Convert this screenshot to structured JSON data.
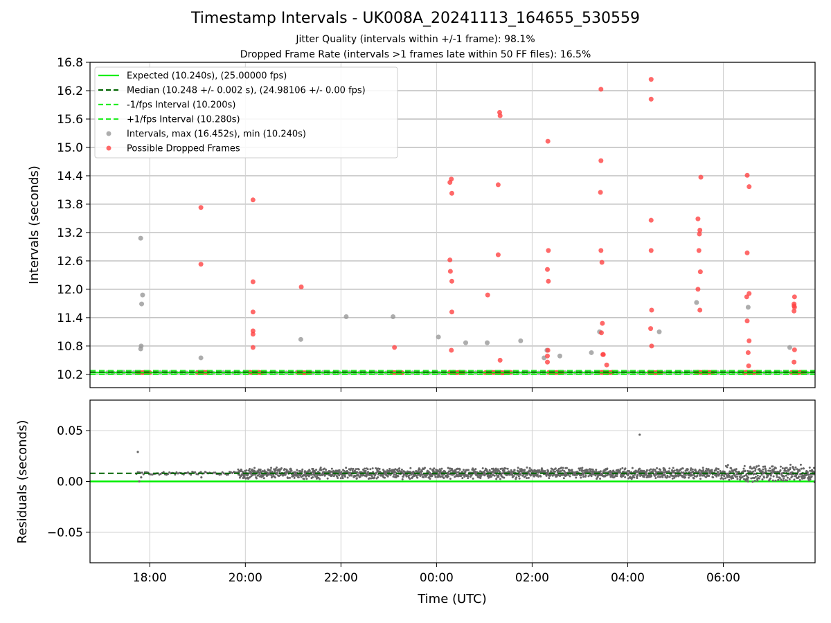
{
  "title": "Timestamp Intervals - UK008A_20241113_164655_530559",
  "subtitle_jitter": "Jitter Quality (intervals within +/-1 frame): 98.1%",
  "subtitle_dropped": "Dropped Frame Rate (intervals >1 frames late within 50 FF files): 16.5%",
  "colors": {
    "expected": "#00ee00",
    "median": "#006400",
    "fps_bounds": "#22ee22",
    "intervals": "#999999",
    "dropped": "#ff4444",
    "residuals": "#666666"
  },
  "chart_data": [
    {
      "type": "scatter",
      "name": "intervals",
      "ylabel": "Intervals (seconds)",
      "xlabel": "",
      "x_unit": "hours since 16:00 UTC",
      "xlim": [
        0.75,
        15.92
      ],
      "ylim": [
        9.92,
        16.8
      ],
      "y_ticks": [
        10.2,
        10.8,
        11.4,
        12.0,
        12.6,
        13.2,
        13.8,
        14.4,
        15.0,
        15.6,
        16.2,
        16.8
      ],
      "y_tick_labels": [
        "10.2",
        "10.8",
        "11.4",
        "12.0",
        "12.6",
        "13.2",
        "13.8",
        "14.4",
        "15.0",
        "15.6",
        "16.2",
        "16.8"
      ],
      "x_ticks": [
        2,
        4,
        6,
        8,
        10,
        12,
        14
      ],
      "grid": true,
      "legend_position": "top-left",
      "legend": [
        {
          "label": "Expected (10.240s), (25.00000 fps)",
          "style": "solid",
          "color": "#00ee00"
        },
        {
          "label": "Median (10.248 +/- 0.002 s), (24.98106 +/- 0.00 fps)",
          "style": "dashed",
          "color": "#006400"
        },
        {
          "label": "-1/fps Interval (10.200s)",
          "style": "dashed",
          "color": "#22ee22"
        },
        {
          "label": "+1/fps Interval (10.280s)",
          "style": "dashed",
          "color": "#22ee22"
        },
        {
          "label": "Intervals, max (16.452s), min (10.240s)",
          "style": "marker",
          "color": "#999999"
        },
        {
          "label": "Possible Dropped Frames",
          "style": "marker",
          "color": "#ff4444"
        }
      ],
      "lines": {
        "expected": 10.24,
        "median": 10.248,
        "minus_fps": 10.2,
        "plus_fps": 10.28
      },
      "series": [
        {
          "role": "intervals",
          "points": [
            [
              1.81,
              13.08
            ],
            [
              1.85,
              11.88
            ],
            [
              1.83,
              11.69
            ],
            [
              1.82,
              10.8
            ],
            [
              1.81,
              10.74
            ],
            [
              3.07,
              10.55
            ],
            [
              5.16,
              10.94
            ],
            [
              6.11,
              11.42
            ],
            [
              7.09,
              11.42
            ],
            [
              8.04,
              10.99
            ],
            [
              8.61,
              10.87
            ],
            [
              9.06,
              10.87
            ],
            [
              9.76,
              10.91
            ],
            [
              10.25,
              10.55
            ],
            [
              10.31,
              10.71
            ],
            [
              10.58,
              10.59
            ],
            [
              11.24,
              10.66
            ],
            [
              11.41,
              11.1
            ],
            [
              12.66,
              11.1
            ],
            [
              13.44,
              11.72
            ],
            [
              14.52,
              11.62
            ],
            [
              15.39,
              10.77
            ]
          ]
        },
        {
          "role": "dropped",
          "points": [
            [
              3.07,
              13.73
            ],
            [
              3.07,
              12.53
            ],
            [
              4.16,
              13.89
            ],
            [
              4.16,
              12.16
            ],
            [
              4.16,
              11.52
            ],
            [
              4.16,
              11.12
            ],
            [
              4.16,
              11.05
            ],
            [
              4.16,
              10.77
            ],
            [
              5.17,
              12.05
            ],
            [
              7.12,
              10.77
            ],
            [
              8.28,
              14.26
            ],
            [
              8.31,
              14.33
            ],
            [
              8.32,
              14.03
            ],
            [
              8.28,
              12.62
            ],
            [
              8.29,
              12.38
            ],
            [
              8.32,
              12.17
            ],
            [
              8.32,
              11.52
            ],
            [
              8.31,
              10.71
            ],
            [
              9.07,
              11.88
            ],
            [
              9.32,
              15.74
            ],
            [
              9.33,
              15.67
            ],
            [
              9.29,
              14.21
            ],
            [
              9.29,
              12.73
            ],
            [
              9.33,
              10.5
            ],
            [
              10.33,
              15.13
            ],
            [
              10.34,
              12.82
            ],
            [
              10.32,
              12.42
            ],
            [
              10.34,
              12.17
            ],
            [
              10.33,
              10.71
            ],
            [
              10.32,
              10.59
            ],
            [
              10.32,
              10.46
            ],
            [
              11.44,
              16.23
            ],
            [
              11.44,
              14.72
            ],
            [
              11.43,
              14.05
            ],
            [
              11.44,
              12.82
            ],
            [
              11.46,
              12.57
            ],
            [
              11.47,
              11.28
            ],
            [
              11.45,
              11.08
            ],
            [
              11.48,
              10.62
            ],
            [
              11.49,
              10.62
            ],
            [
              11.56,
              10.4
            ],
            [
              12.49,
              16.44
            ],
            [
              12.49,
              16.02
            ],
            [
              12.49,
              13.46
            ],
            [
              12.49,
              12.82
            ],
            [
              12.5,
              11.56
            ],
            [
              12.48,
              11.17
            ],
            [
              12.5,
              10.8
            ],
            [
              13.47,
              13.49
            ],
            [
              13.51,
              13.25
            ],
            [
              13.5,
              13.17
            ],
            [
              13.49,
              12.82
            ],
            [
              13.52,
              12.37
            ],
            [
              13.47,
              12.0
            ],
            [
              13.51,
              11.56
            ],
            [
              13.53,
              14.37
            ],
            [
              14.5,
              14.41
            ],
            [
              14.54,
              14.17
            ],
            [
              14.5,
              12.77
            ],
            [
              14.49,
              11.84
            ],
            [
              14.54,
              11.91
            ],
            [
              14.5,
              11.33
            ],
            [
              14.54,
              10.91
            ],
            [
              14.52,
              10.66
            ],
            [
              14.53,
              10.38
            ],
            [
              15.49,
              11.84
            ],
            [
              15.48,
              11.69
            ],
            [
              15.48,
              11.65
            ],
            [
              15.49,
              11.62
            ],
            [
              15.48,
              11.54
            ],
            [
              15.49,
              10.72
            ],
            [
              15.48,
              10.46
            ]
          ]
        },
        {
          "role": "dropped_baseline_clusters",
          "ranges": [
            [
              1.75,
              2.02
            ],
            [
              3.0,
              3.22
            ],
            [
              4.1,
              4.35
            ],
            [
              5.1,
              5.35
            ],
            [
              7.07,
              7.3
            ],
            [
              8.28,
              8.58
            ],
            [
              9.02,
              9.3
            ],
            [
              9.3,
              9.58
            ],
            [
              10.35,
              10.66
            ],
            [
              11.43,
              11.7
            ],
            [
              12.45,
              12.72
            ],
            [
              13.43,
              13.8
            ],
            [
              14.44,
              14.75
            ],
            [
              15.43,
              15.68
            ]
          ]
        }
      ]
    },
    {
      "type": "scatter",
      "name": "residuals",
      "ylabel": "Residuals (seconds)",
      "xlabel": "Time (UTC)",
      "x_unit": "hours since 16:00 UTC",
      "xlim": [
        0.75,
        15.92
      ],
      "ylim": [
        -0.08,
        0.08
      ],
      "y_ticks": [
        -0.05,
        0.0,
        0.05
      ],
      "y_tick_labels": [
        "−0.05",
        "0.00",
        "0.05"
      ],
      "x_ticks": [
        2,
        4,
        6,
        8,
        10,
        12,
        14
      ],
      "x_tick_labels": [
        "18:00",
        "20:00",
        "22:00",
        "00:00",
        "02:00",
        "04:00",
        "06:00"
      ],
      "grid": true,
      "lines": {
        "zero": 0.0,
        "median_offset": 0.008
      },
      "series": [
        {
          "role": "residuals",
          "outliers": [
            [
              1.75,
              0.029
            ],
            [
              12.25,
              0.046
            ],
            [
              1.78,
              0.0
            ],
            [
              1.82,
              0.004
            ],
            [
              3.08,
              0.004
            ]
          ],
          "band_sparse": {
            "range": [
              1.72,
              3.85
            ],
            "center": 0.008,
            "spread": 0.0015
          },
          "band_dense": {
            "range": [
              3.85,
              15.92
            ],
            "center": 0.008,
            "spread": 0.006,
            "tail_start": 14.0,
            "tail_spread": 0.009
          }
        }
      ]
    }
  ]
}
